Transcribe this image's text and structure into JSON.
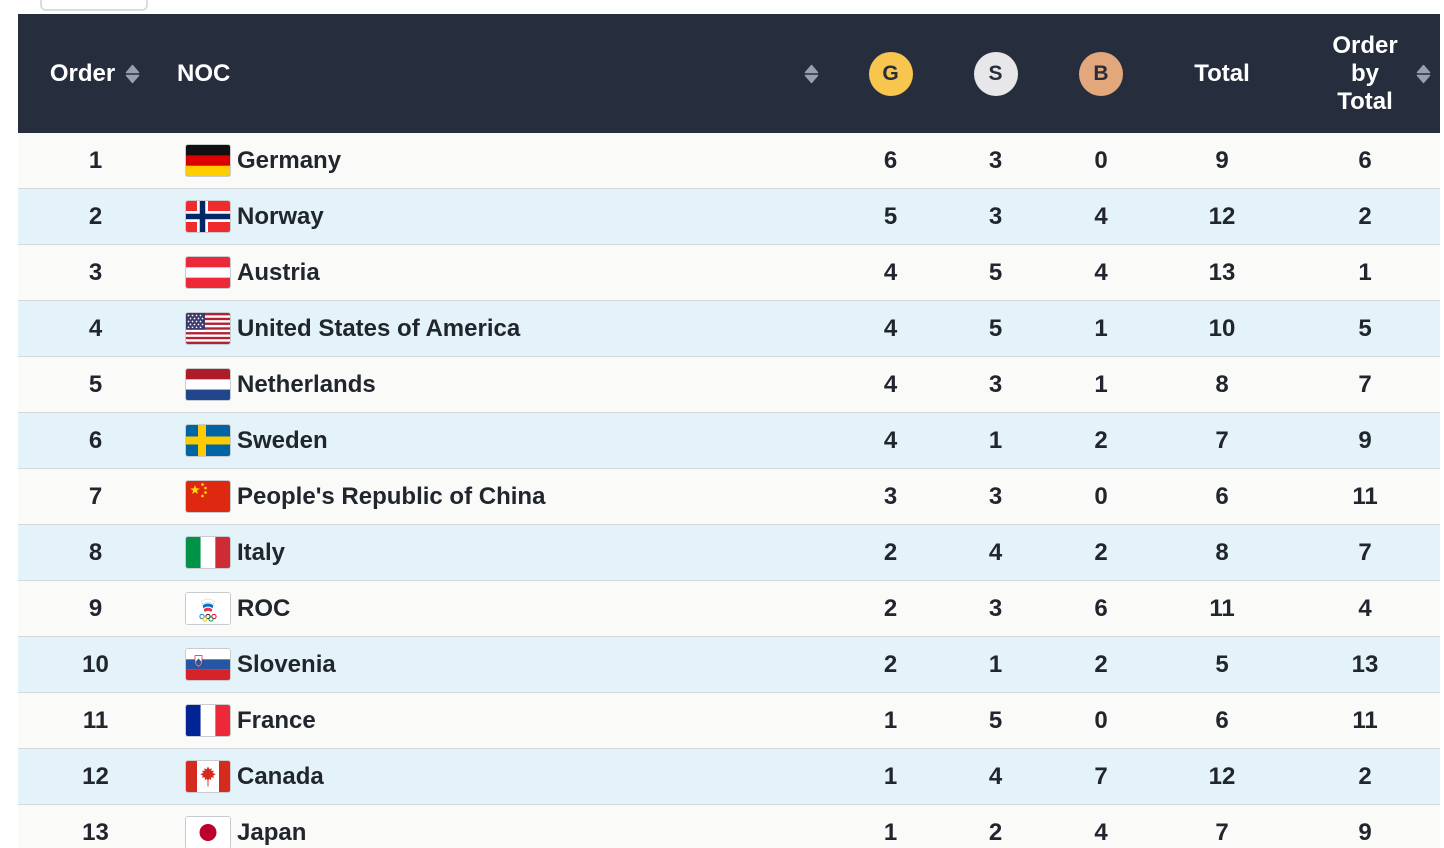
{
  "table": {
    "header": {
      "order_label": "Order",
      "noc_label": "NOC",
      "gold_letter": "G",
      "silver_letter": "S",
      "bronze_letter": "B",
      "total_label": "Total",
      "order_by_total_label": "Order by Total"
    },
    "colors": {
      "header_bg": "#262e3e",
      "header_text": "#ffffff",
      "row_odd": "#fafaf8",
      "row_even": "#e4f2f9",
      "divider": "#d5d8da",
      "text": "#21262e",
      "gold": "#f8c54f",
      "silver": "#e7e7e9",
      "bronze": "#e2a87c",
      "sort_icon": "#99a0ab"
    },
    "rows": [
      {
        "order": 1,
        "noc": "Germany",
        "flag": "de",
        "gold": 6,
        "silver": 3,
        "bronze": 0,
        "total": 9,
        "order_by_total": 6
      },
      {
        "order": 2,
        "noc": "Norway",
        "flag": "no",
        "gold": 5,
        "silver": 3,
        "bronze": 4,
        "total": 12,
        "order_by_total": 2
      },
      {
        "order": 3,
        "noc": "Austria",
        "flag": "at",
        "gold": 4,
        "silver": 5,
        "bronze": 4,
        "total": 13,
        "order_by_total": 1
      },
      {
        "order": 4,
        "noc": "United States of America",
        "flag": "us",
        "gold": 4,
        "silver": 5,
        "bronze": 1,
        "total": 10,
        "order_by_total": 5
      },
      {
        "order": 5,
        "noc": "Netherlands",
        "flag": "nl",
        "gold": 4,
        "silver": 3,
        "bronze": 1,
        "total": 8,
        "order_by_total": 7
      },
      {
        "order": 6,
        "noc": "Sweden",
        "flag": "se",
        "gold": 4,
        "silver": 1,
        "bronze": 2,
        "total": 7,
        "order_by_total": 9
      },
      {
        "order": 7,
        "noc": "People's Republic of China",
        "flag": "cn",
        "gold": 3,
        "silver": 3,
        "bronze": 0,
        "total": 6,
        "order_by_total": 11
      },
      {
        "order": 8,
        "noc": "Italy",
        "flag": "it",
        "gold": 2,
        "silver": 4,
        "bronze": 2,
        "total": 8,
        "order_by_total": 7
      },
      {
        "order": 9,
        "noc": "ROC",
        "flag": "roc",
        "gold": 2,
        "silver": 3,
        "bronze": 6,
        "total": 11,
        "order_by_total": 4
      },
      {
        "order": 10,
        "noc": "Slovenia",
        "flag": "si",
        "gold": 2,
        "silver": 1,
        "bronze": 2,
        "total": 5,
        "order_by_total": 13
      },
      {
        "order": 11,
        "noc": "France",
        "flag": "fr",
        "gold": 1,
        "silver": 5,
        "bronze": 0,
        "total": 6,
        "order_by_total": 11
      },
      {
        "order": 12,
        "noc": "Canada",
        "flag": "ca",
        "gold": 1,
        "silver": 4,
        "bronze": 7,
        "total": 12,
        "order_by_total": 2
      },
      {
        "order": 13,
        "noc": "Japan",
        "flag": "jp",
        "gold": 1,
        "silver": 2,
        "bronze": 4,
        "total": 7,
        "order_by_total": 9
      }
    ]
  }
}
